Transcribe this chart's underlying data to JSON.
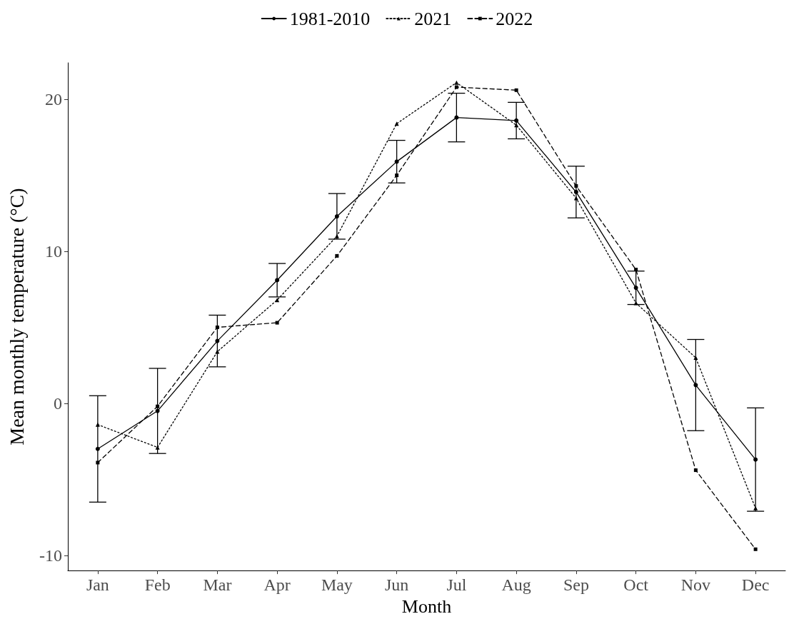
{
  "chart_data": {
    "type": "line",
    "xlabel": "Month",
    "ylabel": "Mean monthly temperature (°C)",
    "categories": [
      "Jan",
      "Feb",
      "Mar",
      "Apr",
      "May",
      "Jun",
      "Jul",
      "Aug",
      "Sep",
      "Oct",
      "Nov",
      "Dec"
    ],
    "series": [
      {
        "name": "1981-2010",
        "color": "#000000",
        "marker": "circle",
        "line_style": "solid",
        "values": [
          -3.0,
          -0.5,
          4.1,
          8.1,
          12.3,
          15.9,
          18.8,
          18.6,
          13.9,
          7.6,
          1.2,
          -3.7
        ],
        "errors": [
          [
            -6.5,
            0.5
          ],
          [
            -3.3,
            2.3
          ],
          [
            2.4,
            5.8
          ],
          [
            7.0,
            9.2
          ],
          [
            10.8,
            13.8
          ],
          [
            14.5,
            17.3
          ],
          [
            17.2,
            20.4
          ],
          [
            17.4,
            19.8
          ],
          [
            12.2,
            15.6
          ],
          [
            6.5,
            8.7
          ],
          [
            -1.8,
            4.2
          ],
          [
            -7.1,
            -0.3
          ]
        ]
      },
      {
        "name": "2021",
        "color": "#000000",
        "marker": "triangle",
        "line_style": "dotted",
        "values": [
          -1.4,
          -2.9,
          3.4,
          6.8,
          11.0,
          18.4,
          21.1,
          18.3,
          13.5,
          6.6,
          3.0,
          -6.9
        ]
      },
      {
        "name": "2022",
        "color": "#000000",
        "marker": "square",
        "line_style": "dashed",
        "values": [
          -3.9,
          -0.2,
          5.0,
          5.3,
          9.7,
          15.0,
          20.8,
          20.6,
          14.3,
          8.8,
          -4.4,
          -9.6
        ]
      }
    ],
    "ylim": [
      -11,
      22.4
    ],
    "yticks": [
      -10,
      0,
      10,
      20
    ],
    "grid": false,
    "legend": "top"
  }
}
